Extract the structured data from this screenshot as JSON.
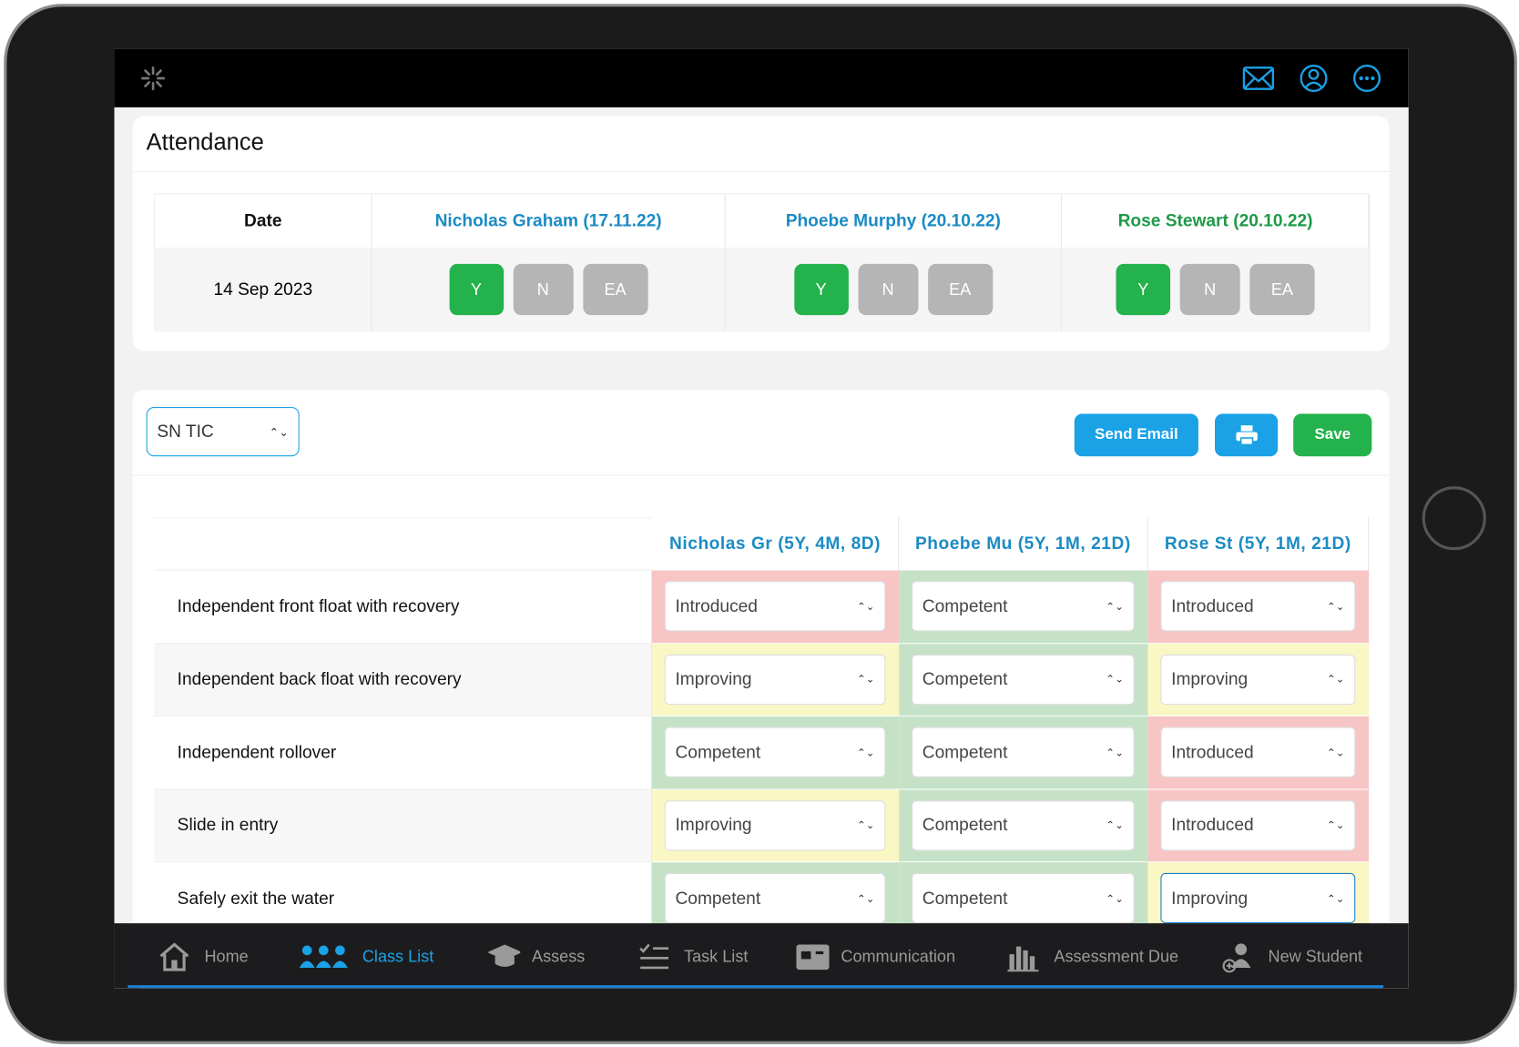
{
  "attendance": {
    "title": "Attendance",
    "headers": [
      "Date",
      "Nicholas Graham (17.11.22)",
      "Phoebe Murphy (20.10.22)",
      "Rose Stewart (20.10.22)"
    ],
    "header_colors": [
      "#111111",
      "#1b8bc4",
      "#1b8bc4",
      "#1e9a48"
    ],
    "date": "14 Sep 2023",
    "buttons": [
      "Y",
      "N",
      "EA"
    ]
  },
  "assessment": {
    "class": "SN TIC",
    "actions": [
      "Send Email",
      "Save"
    ],
    "students": [
      "Nicholas Gr (5Y, 4M, 8D)",
      "Phoebe Mu (5Y, 1M, 21D)",
      "Rose St (5Y, 1M, 21D)"
    ],
    "rows": [
      {
        "skill": "Independent front float with recovery",
        "levels": [
          "Introduced",
          "Competent",
          "Introduced"
        ],
        "colors": [
          "#f8c5c5",
          "#c6e2c6",
          "#f8c5c5"
        ]
      },
      {
        "skill": "Independent back float with recovery",
        "levels": [
          "Improving",
          "Competent",
          "Improving"
        ],
        "colors": [
          "#f9f7c4",
          "#c6e2c6",
          "#f9f7c4"
        ]
      },
      {
        "skill": "Independent rollover",
        "levels": [
          "Competent",
          "Competent",
          "Introduced"
        ],
        "colors": [
          "#c6e2c6",
          "#c6e2c6",
          "#f8c5c5"
        ]
      },
      {
        "skill": "Slide in entry",
        "levels": [
          "Improving",
          "Competent",
          "Introduced"
        ],
        "colors": [
          "#f9f7c4",
          "#c6e2c6",
          "#f8c5c5"
        ]
      },
      {
        "skill": "Safely exit the water",
        "levels": [
          "Competent",
          "Competent",
          "Improving"
        ],
        "colors": [
          "#c6e2c6",
          "#c6e2c6",
          "#f9f7c4"
        ]
      }
    ]
  },
  "nav": [
    "Home",
    "Class List",
    "Assess",
    "Task List",
    "Communication",
    "Assessment Due",
    "New Student"
  ],
  "nav_active": 1
}
